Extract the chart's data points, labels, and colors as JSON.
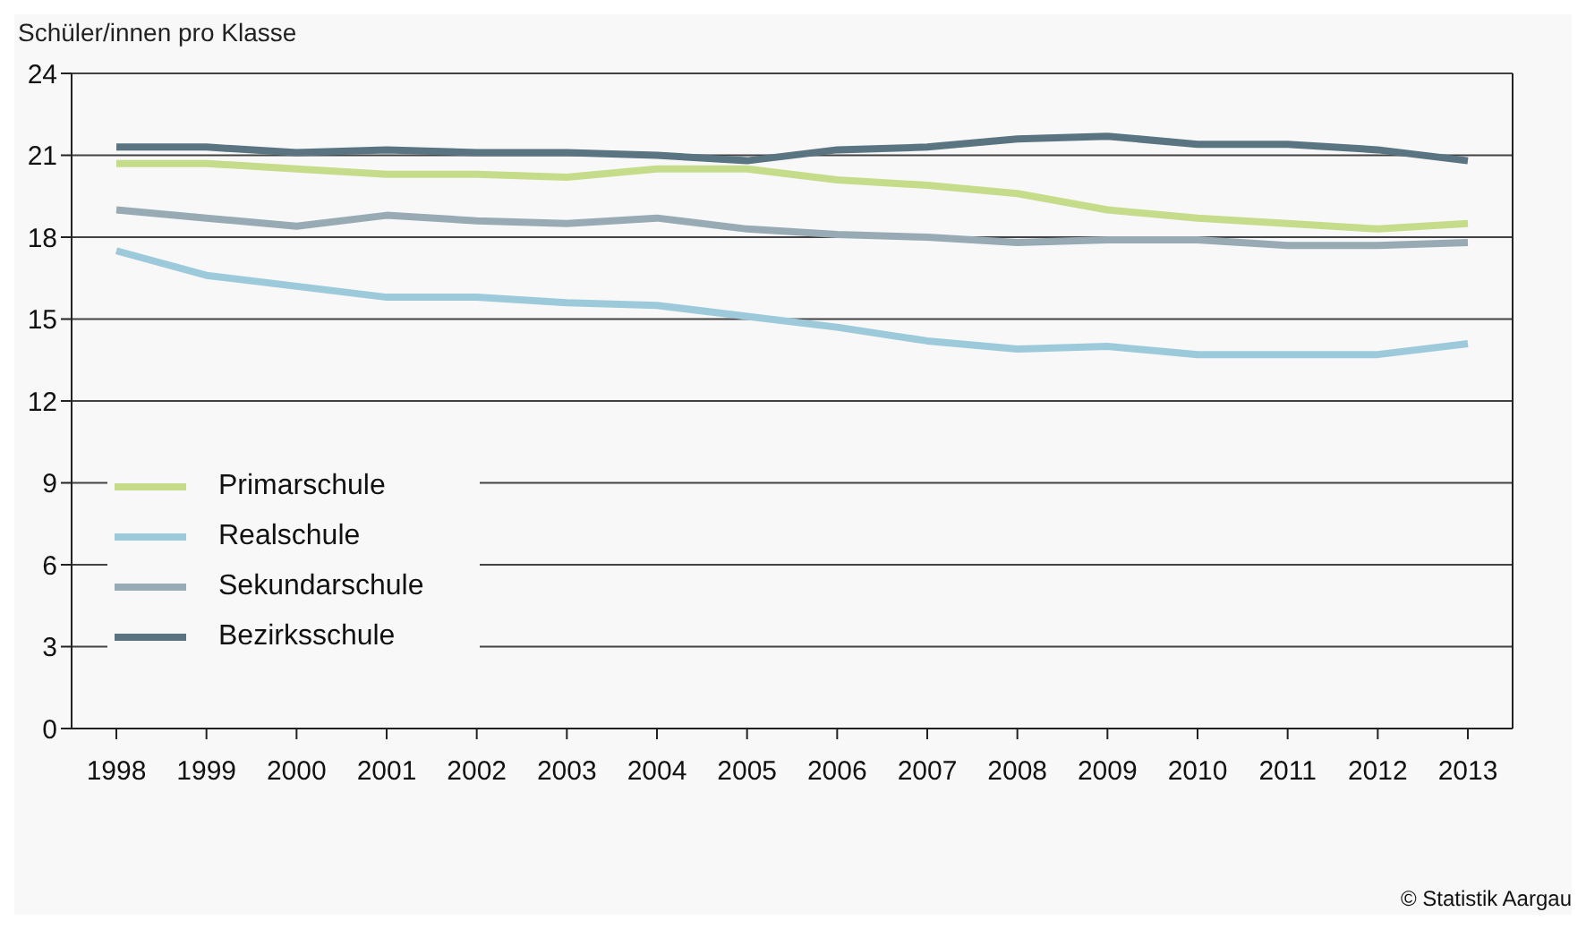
{
  "chart_data": {
    "type": "line",
    "ylabel": "Schüler/innen pro Klasse",
    "categories": [
      "1998",
      "1999",
      "2000",
      "2001",
      "2002",
      "2003",
      "2004",
      "2005",
      "2006",
      "2007",
      "2008",
      "2009",
      "2010",
      "2011",
      "2012",
      "2013"
    ],
    "series": [
      {
        "name": "Primarschule",
        "color": "#c5dc8a",
        "values": [
          20.7,
          20.7,
          20.5,
          20.3,
          20.3,
          20.2,
          20.5,
          20.5,
          20.1,
          19.9,
          19.6,
          19.0,
          18.7,
          18.5,
          18.3,
          18.5
        ]
      },
      {
        "name": "Realschule",
        "color": "#9ccadb",
        "values": [
          17.5,
          16.6,
          16.2,
          15.8,
          15.8,
          15.6,
          15.5,
          15.1,
          14.7,
          14.2,
          13.9,
          14.0,
          13.7,
          13.7,
          13.7,
          14.1
        ]
      },
      {
        "name": "Sekundarschule",
        "color": "#98aab4",
        "values": [
          19.0,
          18.7,
          18.4,
          18.8,
          18.6,
          18.5,
          18.7,
          18.3,
          18.1,
          18.0,
          17.8,
          17.9,
          17.9,
          17.7,
          17.7,
          17.8
        ]
      },
      {
        "name": "Bezirksschule",
        "color": "#5a7482",
        "values": [
          21.3,
          21.3,
          21.1,
          21.2,
          21.1,
          21.1,
          21.0,
          20.8,
          21.2,
          21.3,
          21.6,
          21.7,
          21.4,
          21.4,
          21.2,
          20.8
        ]
      }
    ],
    "ylim": [
      0,
      24
    ],
    "yticks": [
      0,
      3,
      6,
      9,
      12,
      15,
      18,
      21,
      24
    ],
    "grid": "y",
    "legend": "bottom left",
    "marker": "none",
    "line_style": "solid",
    "annotations": [
      "© Statistik Aargau"
    ]
  }
}
